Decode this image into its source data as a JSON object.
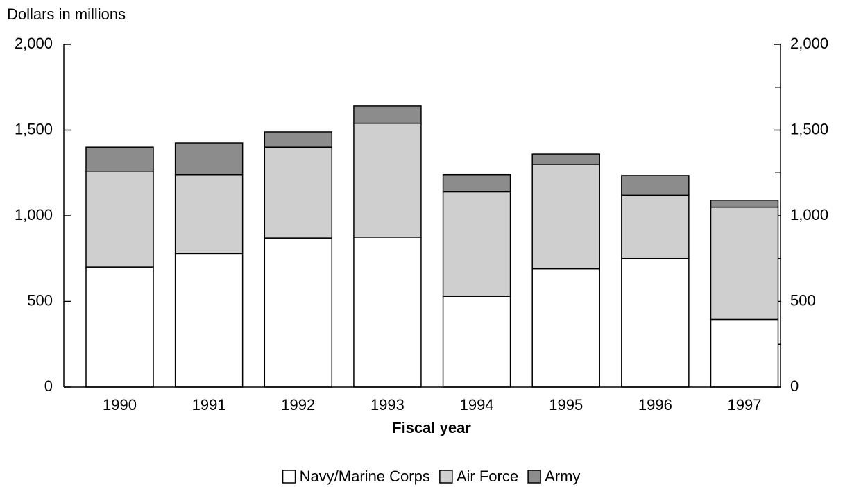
{
  "chart_data": {
    "type": "stacked_bar",
    "y_label": "Dollars in millions",
    "x_label": "Fiscal year",
    "categories": [
      "1990",
      "1991",
      "1992",
      "1993",
      "1994",
      "1995",
      "1996",
      "1997"
    ],
    "series": [
      {
        "name": "Navy/Marine Corps",
        "color": "#ffffff",
        "values": [
          700,
          780,
          870,
          875,
          530,
          690,
          750,
          395
        ]
      },
      {
        "name": "Air Force",
        "color": "#cfcfcf",
        "values": [
          560,
          460,
          530,
          665,
          610,
          610,
          370,
          655
        ]
      },
      {
        "name": "Army",
        "color": "#8c8c8c",
        "values": [
          140,
          185,
          90,
          100,
          100,
          60,
          115,
          40
        ]
      }
    ],
    "ylim": [
      0,
      2000
    ],
    "yticks": [
      0,
      {
        "value": 500,
        "label": "500"
      },
      {
        "value": 1000,
        "label": "1,000"
      },
      {
        "value": 1500,
        "label": "1,500"
      },
      {
        "value": 2000,
        "label": "2,000"
      }
    ],
    "y2lim": [
      0,
      2000
    ],
    "y2ticks": [
      0,
      {
        "value": 500,
        "label": "500"
      },
      {
        "value": 1000,
        "label": "1,000"
      },
      {
        "value": 1500,
        "label": "1,500"
      },
      {
        "value": 2000,
        "label": "2,000"
      }
    ],
    "y2minorticks": [
      250,
      750,
      1250,
      1750
    ],
    "legend": "bottom"
  }
}
